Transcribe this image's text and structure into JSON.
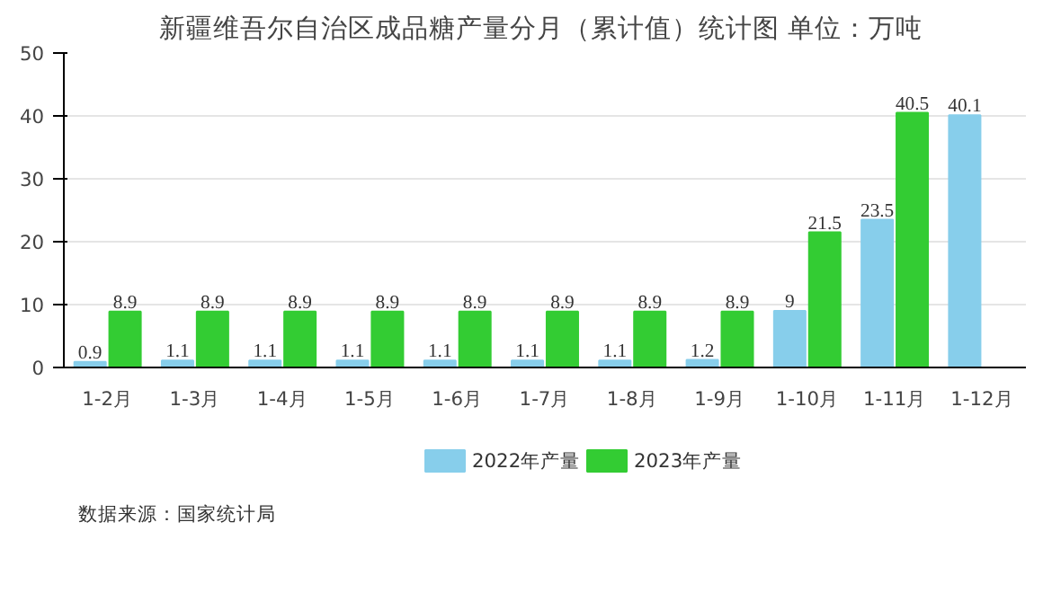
{
  "chart_data": {
    "type": "bar",
    "title": "新疆维吾尔自治区成品糖产量分月（累计值）统计图  单位：万吨",
    "categories": [
      "1-2月",
      "1-3月",
      "1-4月",
      "1-5月",
      "1-6月",
      "1-7月",
      "1-8月",
      "1-9月",
      "1-10月",
      "1-11月",
      "1-12月"
    ],
    "series": [
      {
        "name": "2022年产量",
        "color": "#87ceeb",
        "values": [
          0.9,
          1.1,
          1.1,
          1.1,
          1.1,
          1.1,
          1.1,
          1.2,
          9,
          23.5,
          40.1
        ]
      },
      {
        "name": "2023年产量",
        "color": "#33cc33",
        "values": [
          8.9,
          8.9,
          8.9,
          8.9,
          8.9,
          8.9,
          8.9,
          8.9,
          21.5,
          40.5,
          null
        ]
      }
    ],
    "ylim": [
      0,
      50
    ],
    "yticks": [
      0,
      10,
      20,
      30,
      40,
      50
    ],
    "grid": "y",
    "legend": "bottom",
    "data_labels": true,
    "annotations": [
      "数据来源：国家统计局"
    ]
  }
}
